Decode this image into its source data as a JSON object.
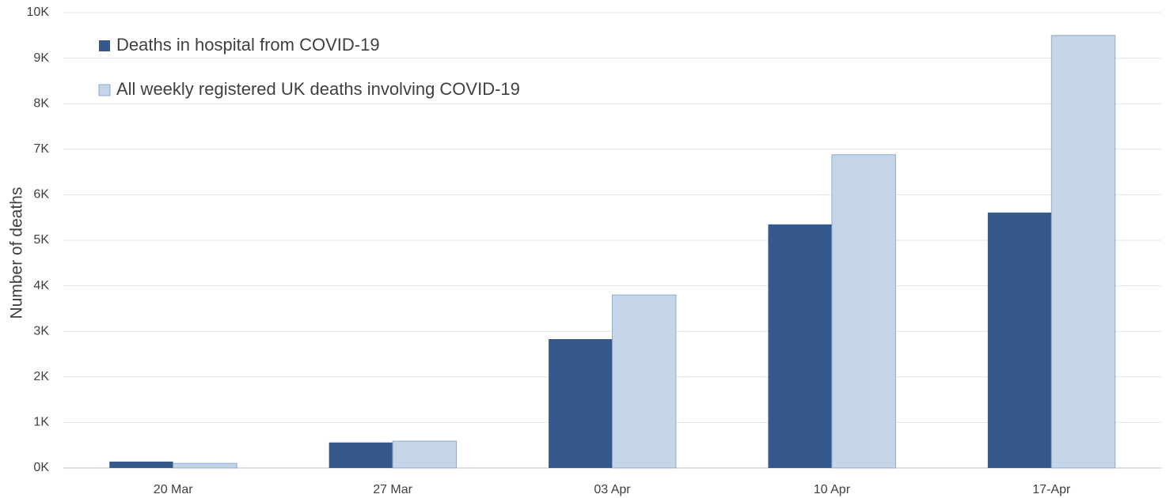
{
  "chart_data": {
    "type": "bar",
    "y_label": "Number of deaths",
    "categories": [
      "20 Mar",
      "27 Mar",
      "03 Apr",
      "10 Apr",
      "17-Apr"
    ],
    "series": [
      {
        "name": "Deaths in hospital from COVID-19",
        "color": "#35598a",
        "values": [
          140,
          560,
          2830,
          5350,
          5610
        ]
      },
      {
        "name": "All weekly registered UK deaths involving COVID-19",
        "color": "#c5d5e8",
        "values": [
          100,
          590,
          3800,
          6880,
          9500
        ]
      }
    ],
    "ylim": [
      0,
      10000
    ],
    "yticks": [
      {
        "value": 0,
        "label": "0K"
      },
      {
        "value": 1000,
        "label": "1K"
      },
      {
        "value": 2000,
        "label": "2K"
      },
      {
        "value": 3000,
        "label": "3K"
      },
      {
        "value": 4000,
        "label": "4K"
      },
      {
        "value": 5000,
        "label": "5K"
      },
      {
        "value": 6000,
        "label": "6K"
      },
      {
        "value": 7000,
        "label": "7K"
      },
      {
        "value": 8000,
        "label": "8K"
      },
      {
        "value": 9000,
        "label": "9K"
      },
      {
        "value": 10000,
        "label": "10K"
      }
    ],
    "grid": true,
    "legend": "upper-left"
  }
}
